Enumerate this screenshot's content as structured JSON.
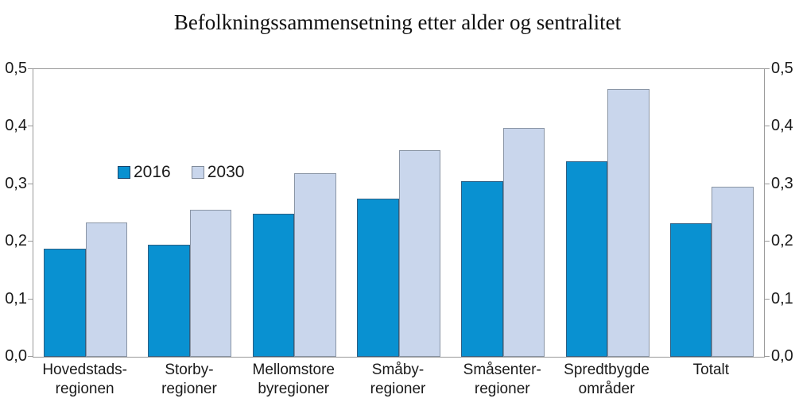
{
  "chart_data": {
    "type": "bar",
    "title": "Befolkningssammensetning etter alder og sentralitet",
    "categories": [
      [
        "Hovedstads-",
        "regionen"
      ],
      [
        "Storby-",
        "regioner"
      ],
      [
        "Mellomstore",
        "byregioner"
      ],
      [
        "Småby-",
        "regioner"
      ],
      [
        "Småsenter-",
        "regioner"
      ],
      [
        "Spredtbygde",
        "områder"
      ],
      [
        "Totalt"
      ]
    ],
    "series": [
      {
        "name": "2016",
        "values": [
          0.188,
          0.195,
          0.248,
          0.275,
          0.305,
          0.34,
          0.232
        ]
      },
      {
        "name": "2030",
        "values": [
          0.234,
          0.255,
          0.319,
          0.359,
          0.398,
          0.465,
          0.296
        ]
      }
    ],
    "ylim": [
      0,
      0.5
    ],
    "y_tick_step": 0.1,
    "y_tick_labels": [
      "0,0",
      "0,1",
      "0,2",
      "0,3",
      "0,4",
      "0,5"
    ],
    "y_axis_sides": "both",
    "decimal_separator": ",",
    "grid": false,
    "legend_position": "inside-top-left"
  },
  "colors": {
    "series_2016_fill": "#0991D1",
    "series_2016_border": "#2E5F83",
    "series_2030_fill": "#C9D6EC",
    "series_2030_border": "#8A95A5",
    "legend_2016_border": "#17446B",
    "legend_2030_border": "#808A99",
    "axis": "#999999",
    "text": "#1A1A1A"
  }
}
